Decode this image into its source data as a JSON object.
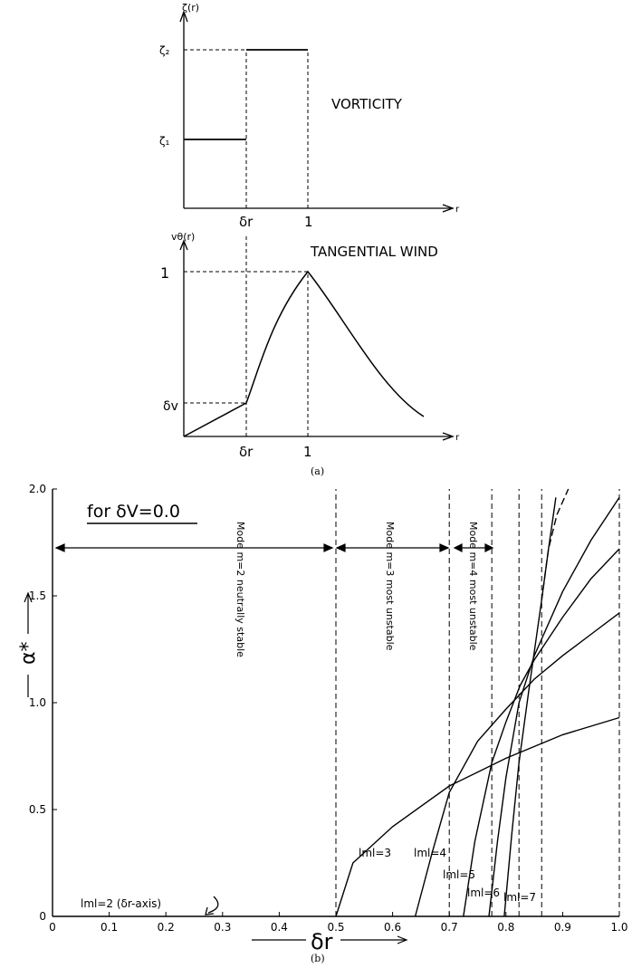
{
  "panel_a": {
    "vorticity": {
      "y_axis_label": "ζ(r)",
      "x_axis_label": "r",
      "y_ticks": [
        "ζ₂",
        "ζ₁"
      ],
      "x_ticks": [
        "δr",
        "1"
      ],
      "title": "VORTICITY"
    },
    "wind": {
      "y_axis_label": "vθ(r)",
      "x_axis_label": "r",
      "y_ticks": [
        "1",
        "δv"
      ],
      "x_ticks": [
        "δr",
        "1"
      ],
      "title": "TANGENTIAL WIND"
    },
    "caption": "(a)"
  },
  "panel_b": {
    "caption": "(b)",
    "for_label": "for δV=0.0",
    "x_axis_label": "δr",
    "y_axis_label": "α*",
    "mode_labels": [
      "Mode m=2 neutrally stable",
      "Mode m=3 most unstable",
      "Mode m=4 most unstable"
    ],
    "curve_labels": [
      "lml=3",
      "lml=4",
      "lml=5",
      "lml=6",
      "lml=7",
      "lml=2 (δr-axis)"
    ]
  },
  "chart_data": [
    {
      "type": "line",
      "title": "VORTICITY",
      "xlabel": "r",
      "ylabel": "ζ(r)",
      "series": [
        {
          "x": [
            0,
            0.5,
            0.5,
            1.0
          ],
          "y": [
            1,
            1,
            2,
            2
          ]
        }
      ]
    },
    {
      "type": "line",
      "title": "TANGENTIAL WIND",
      "xlabel": "r",
      "ylabel": "vθ(r)",
      "series": [
        {
          "x": [
            0,
            0.5,
            0.6,
            0.7,
            0.8,
            0.9,
            1.0,
            1.2,
            1.4,
            1.6,
            1.8,
            2.0
          ],
          "y": [
            0,
            0.27,
            0.55,
            0.73,
            0.85,
            0.94,
            1.0,
            0.8,
            0.58,
            0.42,
            0.3,
            0.2
          ]
        }
      ]
    },
    {
      "type": "line",
      "title": "for δV=0.0",
      "xlabel": "δr",
      "ylabel": "α*",
      "xlim": [
        0,
        1.0
      ],
      "ylim": [
        0,
        2.0
      ],
      "x_ticks": [
        "0",
        "0.1",
        "0.2",
        "0.3",
        "0.4",
        "0.5",
        "0.6",
        "0.7",
        "0.8",
        "0.9",
        "1.0"
      ],
      "y_ticks": [
        "0",
        "0.5",
        "1.0",
        "1.5",
        "2.0"
      ],
      "boundaries": [
        0.5,
        0.7,
        0.775,
        0.823,
        0.863,
        1.0
      ],
      "series": [
        {
          "name": "lml=3",
          "x": [
            0.5,
            0.53,
            0.6,
            0.7,
            0.8,
            0.9,
            1.0
          ],
          "y": [
            0.0,
            0.25,
            0.42,
            0.61,
            0.74,
            0.85,
            0.93
          ]
        },
        {
          "name": "lml=4",
          "x": [
            0.64,
            0.67,
            0.7,
            0.75,
            0.8,
            0.85,
            0.9,
            0.95,
            1.0
          ],
          "y": [
            0.0,
            0.3,
            0.58,
            0.82,
            0.97,
            1.11,
            1.22,
            1.32,
            1.42
          ]
        },
        {
          "name": "lml=5",
          "x": [
            0.725,
            0.745,
            0.775,
            0.8,
            0.825,
            0.85,
            0.9,
            0.95,
            1.0
          ],
          "y": [
            0.0,
            0.35,
            0.72,
            0.91,
            1.08,
            1.2,
            1.4,
            1.58,
            1.72
          ]
        },
        {
          "name": "lml=6",
          "x": [
            0.77,
            0.785,
            0.8,
            0.823,
            0.85,
            0.9,
            0.95,
            1.0
          ],
          "y": [
            0.0,
            0.35,
            0.65,
            1.0,
            1.22,
            1.52,
            1.76,
            1.96
          ]
        },
        {
          "name": "lml=7",
          "x": [
            0.797,
            0.81,
            0.823,
            0.84,
            0.863,
            0.875,
            0.888
          ],
          "y": [
            0.0,
            0.38,
            0.72,
            1.05,
            1.48,
            1.72,
            1.96
          ]
        },
        {
          "name": "lml=7 (dashed)",
          "x": [
            0.863,
            0.875,
            0.89,
            0.91
          ],
          "y": [
            1.48,
            1.72,
            1.88,
            2.0
          ]
        }
      ]
    }
  ]
}
